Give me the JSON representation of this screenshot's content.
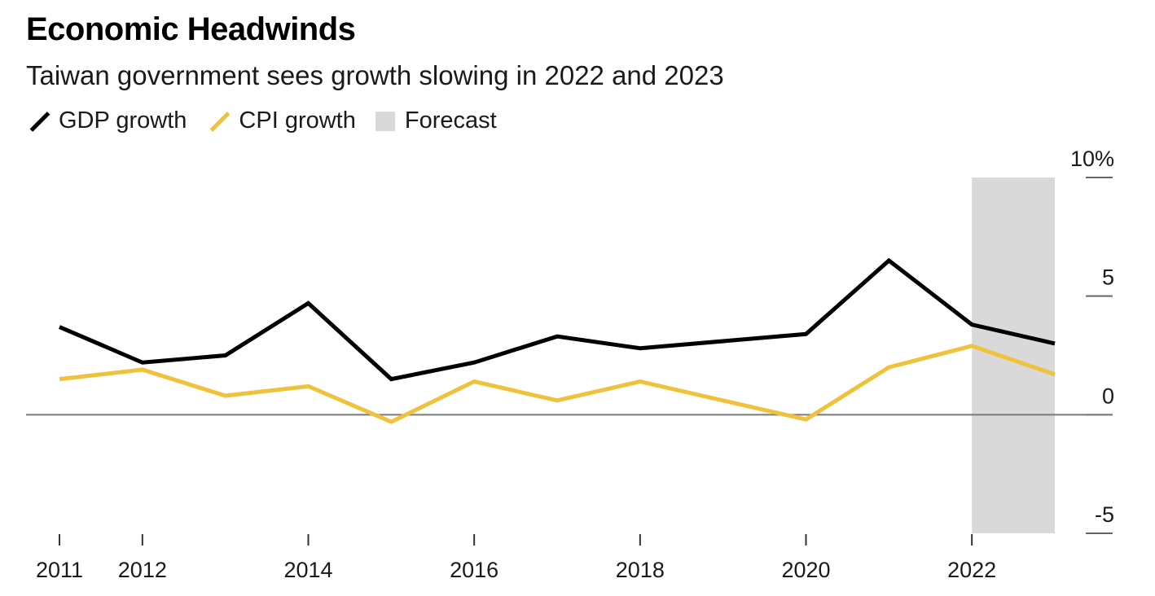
{
  "chart_data": {
    "type": "line",
    "title": "Economic Headwinds",
    "subtitle": "Taiwan government sees growth slowing in 2022 and 2023",
    "x": [
      2011,
      2012,
      2013,
      2014,
      2015,
      2016,
      2017,
      2018,
      2019,
      2020,
      2021,
      2022,
      2023
    ],
    "series": [
      {
        "name": "GDP growth",
        "color": "#000000",
        "values": [
          3.7,
          2.2,
          2.5,
          4.7,
          1.5,
          2.2,
          3.3,
          2.8,
          null,
          3.4,
          6.5,
          3.8,
          3.0
        ]
      },
      {
        "name": "CPI growth",
        "color": "#f0c23c",
        "values": [
          1.5,
          1.9,
          0.8,
          1.2,
          -0.3,
          1.4,
          0.6,
          1.4,
          null,
          -0.2,
          2.0,
          2.9,
          1.7
        ]
      }
    ],
    "forecast": {
      "label": "Forecast",
      "color": "#d9d9d9",
      "start": 2022,
      "end": 2023
    },
    "x_tick_labels": [
      "2011",
      "2012",
      "2014",
      "2016",
      "2018",
      "2020",
      "2022"
    ],
    "x_tick_years": [
      2011,
      2012,
      2014,
      2016,
      2018,
      2020,
      2022
    ],
    "y_ticks": [
      10,
      5,
      0,
      -5
    ],
    "y_tick_labels": [
      "10%",
      "5",
      "0",
      "-5"
    ],
    "ylim": [
      -5,
      10
    ],
    "xlim": [
      2011,
      2023
    ],
    "zero_line": true
  }
}
